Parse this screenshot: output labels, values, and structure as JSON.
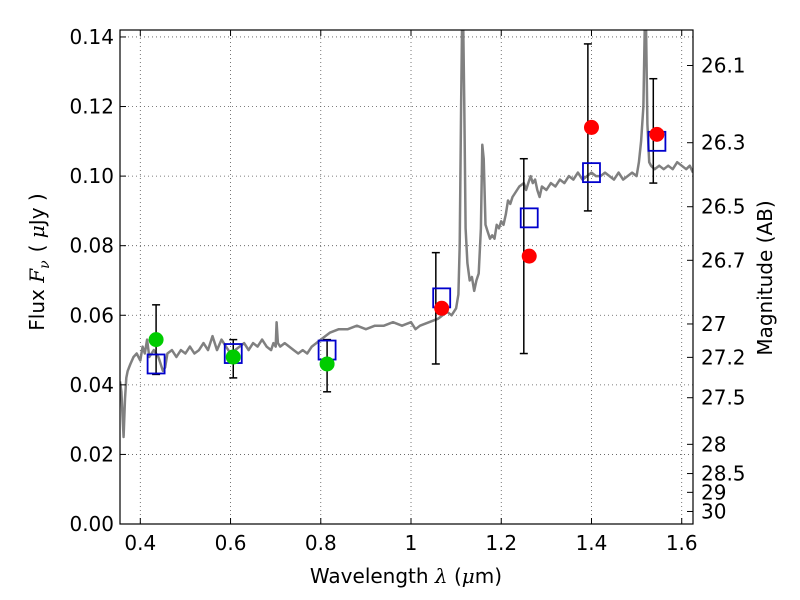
{
  "chart_data": {
    "type": "scatter",
    "xlabel": "Wavelength  λ (μm)",
    "ylabel": "Flux  F_ν  ( μJy )",
    "ylabel_parts": {
      "a": "Flux ",
      "b": "F",
      "c": "ν",
      "d": "( ",
      "e": "μ",
      "f": "Jy )"
    },
    "xlabel_parts": {
      "a": "Wavelength ",
      "b": "λ",
      "c": " (",
      "d": "μ",
      "e": "m)"
    },
    "y2label": "Magnitude (AB)",
    "xlim": [
      0.355,
      1.625
    ],
    "ylim": [
      0.0,
      0.142
    ],
    "grid": true,
    "x_ticks": [
      {
        "value": 0.4,
        "label": "0.4"
      },
      {
        "value": 0.6,
        "label": "0.6"
      },
      {
        "value": 0.8,
        "label": "0.8"
      },
      {
        "value": 1.0,
        "label": "1"
      },
      {
        "value": 1.2,
        "label": "1.2"
      },
      {
        "value": 1.4,
        "label": "1.4"
      },
      {
        "value": 1.6,
        "label": "1.6"
      }
    ],
    "y_ticks": [
      {
        "value": 0.0,
        "label": "0.00"
      },
      {
        "value": 0.02,
        "label": "0.02"
      },
      {
        "value": 0.04,
        "label": "0.04"
      },
      {
        "value": 0.06,
        "label": "0.06"
      },
      {
        "value": 0.08,
        "label": "0.08"
      },
      {
        "value": 0.1,
        "label": "0.10"
      },
      {
        "value": 0.12,
        "label": "0.12"
      },
      {
        "value": 0.14,
        "label": "0.14"
      }
    ],
    "y2_ticks": [
      {
        "flux": 0.1318,
        "label": "26.1"
      },
      {
        "flux": 0.1096,
        "label": "26.3"
      },
      {
        "flux": 0.0912,
        "label": "26.5"
      },
      {
        "flux": 0.0758,
        "label": "26.7"
      },
      {
        "flux": 0.0575,
        "label": "27"
      },
      {
        "flux": 0.0479,
        "label": "27.2"
      },
      {
        "flux": 0.0363,
        "label": "27.5"
      },
      {
        "flux": 0.0229,
        "label": "28"
      },
      {
        "flux": 0.0145,
        "label": "28.5"
      },
      {
        "flux": 0.0091,
        "label": "29"
      },
      {
        "flux": 0.0036,
        "label": "30"
      }
    ],
    "series": [
      {
        "kind": "spectrum",
        "color": "#808080",
        "points": [
          [
            0.355,
            0.041
          ],
          [
            0.358,
            0.038
          ],
          [
            0.361,
            0.03
          ],
          [
            0.363,
            0.025
          ],
          [
            0.366,
            0.036
          ],
          [
            0.369,
            0.042
          ],
          [
            0.372,
            0.044
          ],
          [
            0.378,
            0.046
          ],
          [
            0.385,
            0.048
          ],
          [
            0.392,
            0.049
          ],
          [
            0.4,
            0.047
          ],
          [
            0.405,
            0.051
          ],
          [
            0.41,
            0.049
          ],
          [
            0.415,
            0.053
          ],
          [
            0.42,
            0.048
          ],
          [
            0.43,
            0.05
          ],
          [
            0.44,
            0.048
          ],
          [
            0.45,
            0.044
          ],
          [
            0.455,
            0.045
          ],
          [
            0.46,
            0.049
          ],
          [
            0.47,
            0.05
          ],
          [
            0.48,
            0.048
          ],
          [
            0.49,
            0.05
          ],
          [
            0.5,
            0.049
          ],
          [
            0.51,
            0.051
          ],
          [
            0.52,
            0.049
          ],
          [
            0.53,
            0.05
          ],
          [
            0.54,
            0.052
          ],
          [
            0.55,
            0.05
          ],
          [
            0.56,
            0.054
          ],
          [
            0.57,
            0.05
          ],
          [
            0.58,
            0.053
          ],
          [
            0.59,
            0.051
          ],
          [
            0.6,
            0.049
          ],
          [
            0.61,
            0.05
          ],
          [
            0.62,
            0.051
          ],
          [
            0.63,
            0.052
          ],
          [
            0.64,
            0.05
          ],
          [
            0.65,
            0.052
          ],
          [
            0.66,
            0.051
          ],
          [
            0.67,
            0.053
          ],
          [
            0.68,
            0.051
          ],
          [
            0.69,
            0.05
          ],
          [
            0.695,
            0.052
          ],
          [
            0.7,
            0.051
          ],
          [
            0.702,
            0.058
          ],
          [
            0.705,
            0.052
          ],
          [
            0.71,
            0.051
          ],
          [
            0.72,
            0.052
          ],
          [
            0.73,
            0.051
          ],
          [
            0.74,
            0.05
          ],
          [
            0.75,
            0.049
          ],
          [
            0.76,
            0.05
          ],
          [
            0.77,
            0.049
          ],
          [
            0.78,
            0.051
          ],
          [
            0.79,
            0.052
          ],
          [
            0.8,
            0.053
          ],
          [
            0.82,
            0.055
          ],
          [
            0.84,
            0.056
          ],
          [
            0.86,
            0.056
          ],
          [
            0.88,
            0.057
          ],
          [
            0.9,
            0.056
          ],
          [
            0.92,
            0.057
          ],
          [
            0.94,
            0.057
          ],
          [
            0.96,
            0.058
          ],
          [
            0.98,
            0.057
          ],
          [
            1.0,
            0.058
          ],
          [
            1.01,
            0.056
          ],
          [
            1.02,
            0.057
          ],
          [
            1.04,
            0.058
          ],
          [
            1.06,
            0.059
          ],
          [
            1.08,
            0.061
          ],
          [
            1.09,
            0.06
          ],
          [
            1.1,
            0.062
          ],
          [
            1.105,
            0.066
          ],
          [
            1.108,
            0.08
          ],
          [
            1.111,
            0.12
          ],
          [
            1.113,
            0.142
          ],
          [
            1.116,
            0.142
          ],
          [
            1.118,
            0.12
          ],
          [
            1.121,
            0.085
          ],
          [
            1.125,
            0.075
          ],
          [
            1.13,
            0.07
          ],
          [
            1.135,
            0.071
          ],
          [
            1.14,
            0.067
          ],
          [
            1.145,
            0.07
          ],
          [
            1.15,
            0.072
          ],
          [
            1.155,
            0.085
          ],
          [
            1.158,
            0.109
          ],
          [
            1.161,
            0.105
          ],
          [
            1.165,
            0.086
          ],
          [
            1.17,
            0.084
          ],
          [
            1.175,
            0.082
          ],
          [
            1.18,
            0.083
          ],
          [
            1.185,
            0.082
          ],
          [
            1.19,
            0.086
          ],
          [
            1.195,
            0.085
          ],
          [
            1.2,
            0.087
          ],
          [
            1.205,
            0.086
          ],
          [
            1.21,
            0.089
          ],
          [
            1.215,
            0.093
          ],
          [
            1.22,
            0.092
          ],
          [
            1.225,
            0.094
          ],
          [
            1.23,
            0.095
          ],
          [
            1.24,
            0.097
          ],
          [
            1.25,
            0.098
          ],
          [
            1.255,
            0.096
          ],
          [
            1.26,
            0.098
          ],
          [
            1.265,
            0.1
          ],
          [
            1.27,
            0.098
          ],
          [
            1.275,
            0.099
          ],
          [
            1.28,
            0.096
          ],
          [
            1.285,
            0.094
          ],
          [
            1.29,
            0.097
          ],
          [
            1.3,
            0.096
          ],
          [
            1.31,
            0.098
          ],
          [
            1.32,
            0.097
          ],
          [
            1.33,
            0.099
          ],
          [
            1.34,
            0.098
          ],
          [
            1.35,
            0.1
          ],
          [
            1.36,
            0.099
          ],
          [
            1.37,
            0.101
          ],
          [
            1.38,
            0.099
          ],
          [
            1.39,
            0.1
          ],
          [
            1.4,
            0.101
          ],
          [
            1.41,
            0.1
          ],
          [
            1.42,
            0.1
          ],
          [
            1.43,
            0.101
          ],
          [
            1.44,
            0.1
          ],
          [
            1.45,
            0.099
          ],
          [
            1.46,
            0.101
          ],
          [
            1.47,
            0.099
          ],
          [
            1.48,
            0.1
          ],
          [
            1.49,
            0.101
          ],
          [
            1.5,
            0.1
          ],
          [
            1.505,
            0.104
          ],
          [
            1.51,
            0.11
          ],
          [
            1.515,
            0.12
          ],
          [
            1.518,
            0.142
          ],
          [
            1.521,
            0.142
          ],
          [
            1.524,
            0.115
          ],
          [
            1.528,
            0.104
          ],
          [
            1.532,
            0.103
          ],
          [
            1.54,
            0.102
          ],
          [
            1.55,
            0.103
          ],
          [
            1.56,
            0.102
          ],
          [
            1.57,
            0.103
          ],
          [
            1.58,
            0.102
          ],
          [
            1.59,
            0.104
          ],
          [
            1.6,
            0.103
          ],
          [
            1.61,
            0.102
          ],
          [
            1.618,
            0.103
          ],
          [
            1.625,
            0.101
          ]
        ]
      },
      {
        "kind": "errorbar",
        "color": "#000000",
        "points": [
          {
            "x": 0.435,
            "low": 0.043,
            "high": 0.063
          },
          {
            "x": 0.606,
            "low": 0.042,
            "high": 0.053
          },
          {
            "x": 0.814,
            "low": 0.038,
            "high": 0.053
          },
          {
            "x": 1.055,
            "low": 0.046,
            "high": 0.078
          },
          {
            "x": 1.25,
            "low": 0.049,
            "high": 0.105
          },
          {
            "x": 1.392,
            "low": 0.09,
            "high": 0.138
          },
          {
            "x": 1.537,
            "low": 0.098,
            "high": 0.128
          }
        ]
      },
      {
        "kind": "model-square",
        "color": "#0000cc",
        "points": [
          {
            "x": 0.435,
            "y": 0.046
          },
          {
            "x": 0.606,
            "y": 0.049
          },
          {
            "x": 0.814,
            "y": 0.05
          },
          {
            "x": 1.068,
            "y": 0.065
          },
          {
            "x": 1.262,
            "y": 0.088
          },
          {
            "x": 1.4,
            "y": 0.101
          },
          {
            "x": 1.545,
            "y": 0.11
          }
        ]
      },
      {
        "kind": "observed-green",
        "color": "#00cc00",
        "points": [
          {
            "x": 0.435,
            "y": 0.053
          },
          {
            "x": 0.606,
            "y": 0.048
          },
          {
            "x": 0.814,
            "y": 0.046
          }
        ]
      },
      {
        "kind": "observed-red",
        "color": "#ff0000",
        "points": [
          {
            "x": 1.068,
            "y": 0.062
          },
          {
            "x": 1.262,
            "y": 0.077
          },
          {
            "x": 1.4,
            "y": 0.114
          },
          {
            "x": 1.545,
            "y": 0.112
          }
        ]
      }
    ]
  }
}
